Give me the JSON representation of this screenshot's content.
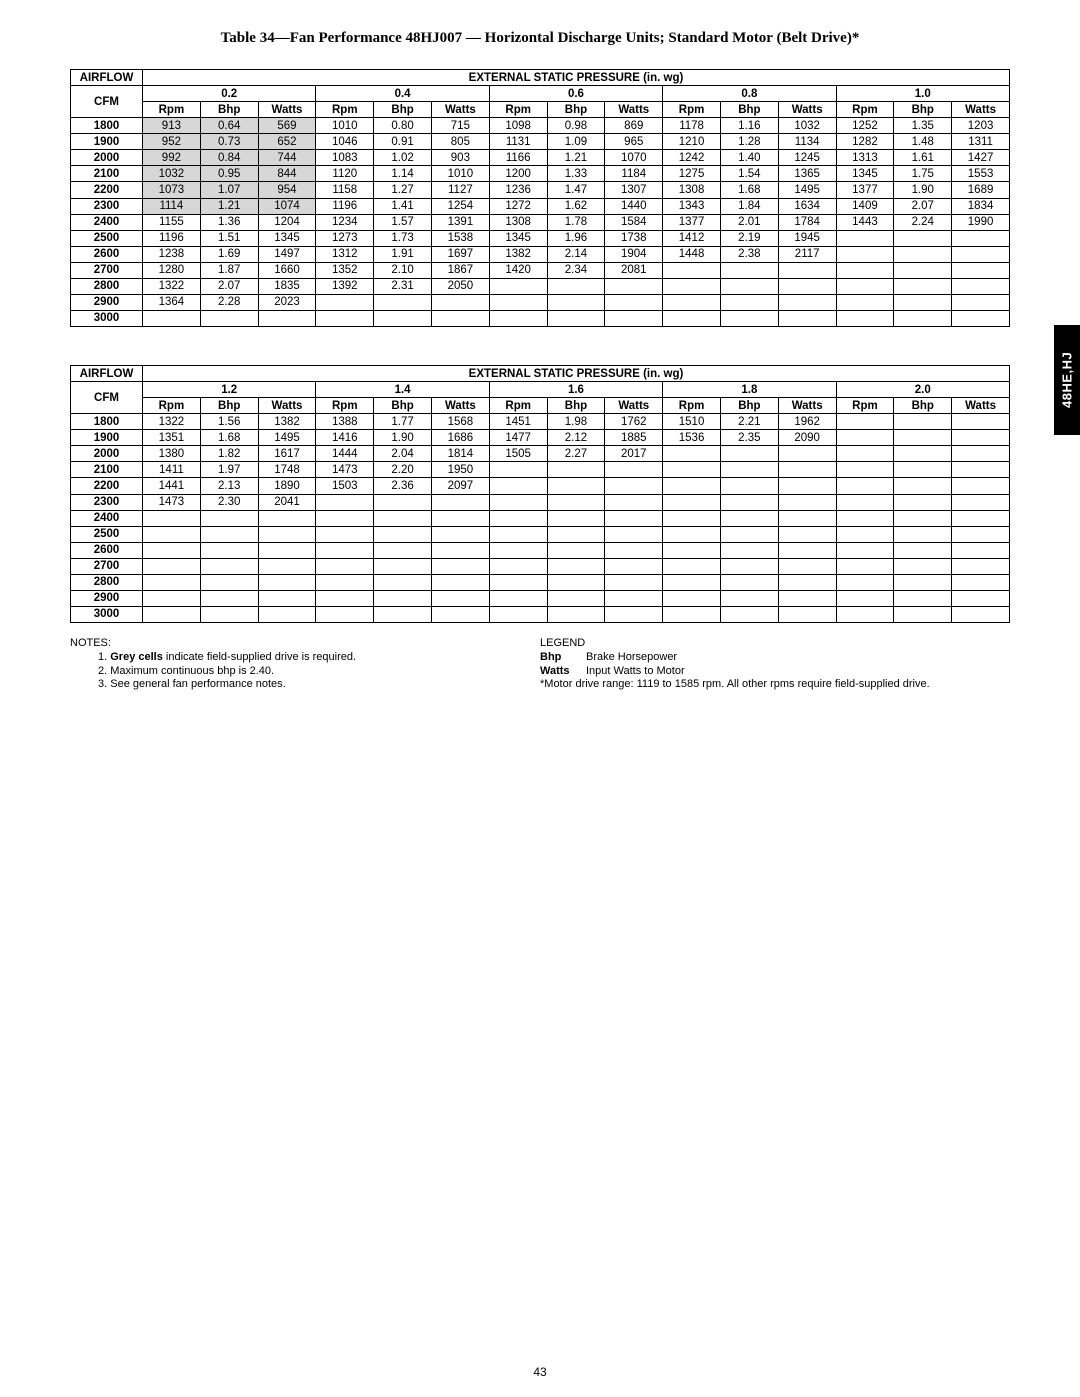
{
  "colors": {
    "grey_cell": "#d7d7d7",
    "tab_bg": "#000000",
    "tab_fg": "#ffffff",
    "border": "#000000",
    "page_bg": "#ffffff"
  },
  "side_tab": "48HE,HJ",
  "title": "Table 34—Fan Performance 48HJ007 — Horizontal Discharge Units; Standard Motor (Belt Drive)*",
  "airflow_label": "AIRFLOW",
  "cfm_label": "CFM",
  "esp_label": "EXTERNAL STATIC PRESSURE (in. wg)",
  "sub_headers": [
    "Rpm",
    "Bhp",
    "Watts"
  ],
  "table1": {
    "pressures": [
      "0.2",
      "0.4",
      "0.6",
      "0.8",
      "1.0"
    ],
    "cfms": [
      "1800",
      "1900",
      "2000",
      "2100",
      "2200",
      "2300",
      "2400",
      "2500",
      "2600",
      "2700",
      "2800",
      "2900",
      "3000"
    ],
    "grey_flags": [
      [
        true,
        false,
        false,
        false,
        false
      ],
      [
        true,
        false,
        false,
        false,
        false
      ],
      [
        true,
        false,
        false,
        false,
        false
      ],
      [
        true,
        false,
        false,
        false,
        false
      ],
      [
        true,
        false,
        false,
        false,
        false
      ],
      [
        true,
        false,
        false,
        false,
        false
      ],
      [
        false,
        false,
        false,
        false,
        false
      ],
      [
        false,
        false,
        false,
        false,
        false
      ],
      [
        false,
        false,
        false,
        false,
        false
      ],
      [
        false,
        false,
        false,
        false,
        false
      ],
      [
        false,
        false,
        false,
        false,
        false
      ],
      [
        false,
        false,
        false,
        false,
        false
      ],
      [
        false,
        false,
        false,
        false,
        false
      ]
    ],
    "rows": [
      [
        [
          "913",
          "0.64",
          "569"
        ],
        [
          "1010",
          "0.80",
          "715"
        ],
        [
          "1098",
          "0.98",
          "869"
        ],
        [
          "1178",
          "1.16",
          "1032"
        ],
        [
          "1252",
          "1.35",
          "1203"
        ]
      ],
      [
        [
          "952",
          "0.73",
          "652"
        ],
        [
          "1046",
          "0.91",
          "805"
        ],
        [
          "1131",
          "1.09",
          "965"
        ],
        [
          "1210",
          "1.28",
          "1134"
        ],
        [
          "1282",
          "1.48",
          "1311"
        ]
      ],
      [
        [
          "992",
          "0.84",
          "744"
        ],
        [
          "1083",
          "1.02",
          "903"
        ],
        [
          "1166",
          "1.21",
          "1070"
        ],
        [
          "1242",
          "1.40",
          "1245"
        ],
        [
          "1313",
          "1.61",
          "1427"
        ]
      ],
      [
        [
          "1032",
          "0.95",
          "844"
        ],
        [
          "1120",
          "1.14",
          "1010"
        ],
        [
          "1200",
          "1.33",
          "1184"
        ],
        [
          "1275",
          "1.54",
          "1365"
        ],
        [
          "1345",
          "1.75",
          "1553"
        ]
      ],
      [
        [
          "1073",
          "1.07",
          "954"
        ],
        [
          "1158",
          "1.27",
          "1127"
        ],
        [
          "1236",
          "1.47",
          "1307"
        ],
        [
          "1308",
          "1.68",
          "1495"
        ],
        [
          "1377",
          "1.90",
          "1689"
        ]
      ],
      [
        [
          "1114",
          "1.21",
          "1074"
        ],
        [
          "1196",
          "1.41",
          "1254"
        ],
        [
          "1272",
          "1.62",
          "1440"
        ],
        [
          "1343",
          "1.84",
          "1634"
        ],
        [
          "1409",
          "2.07",
          "1834"
        ]
      ],
      [
        [
          "1155",
          "1.36",
          "1204"
        ],
        [
          "1234",
          "1.57",
          "1391"
        ],
        [
          "1308",
          "1.78",
          "1584"
        ],
        [
          "1377",
          "2.01",
          "1784"
        ],
        [
          "1443",
          "2.24",
          "1990"
        ]
      ],
      [
        [
          "1196",
          "1.51",
          "1345"
        ],
        [
          "1273",
          "1.73",
          "1538"
        ],
        [
          "1345",
          "1.96",
          "1738"
        ],
        [
          "1412",
          "2.19",
          "1945"
        ],
        [
          "",
          "",
          ""
        ]
      ],
      [
        [
          "1238",
          "1.69",
          "1497"
        ],
        [
          "1312",
          "1.91",
          "1697"
        ],
        [
          "1382",
          "2.14",
          "1904"
        ],
        [
          "1448",
          "2.38",
          "2117"
        ],
        [
          "",
          "",
          ""
        ]
      ],
      [
        [
          "1280",
          "1.87",
          "1660"
        ],
        [
          "1352",
          "2.10",
          "1867"
        ],
        [
          "1420",
          "2.34",
          "2081"
        ],
        [
          "",
          "",
          ""
        ],
        [
          "",
          "",
          ""
        ]
      ],
      [
        [
          "1322",
          "2.07",
          "1835"
        ],
        [
          "1392",
          "2.31",
          "2050"
        ],
        [
          "",
          "",
          ""
        ],
        [
          "",
          "",
          ""
        ],
        [
          "",
          "",
          ""
        ]
      ],
      [
        [
          "1364",
          "2.28",
          "2023"
        ],
        [
          "",
          "",
          ""
        ],
        [
          "",
          "",
          ""
        ],
        [
          "",
          "",
          ""
        ],
        [
          "",
          "",
          ""
        ]
      ],
      [
        [
          "",
          "",
          ""
        ],
        [
          "",
          "",
          ""
        ],
        [
          "",
          "",
          ""
        ],
        [
          "",
          "",
          ""
        ],
        [
          "",
          "",
          ""
        ]
      ]
    ]
  },
  "table2": {
    "pressures": [
      "1.2",
      "1.4",
      "1.6",
      "1.8",
      "2.0"
    ],
    "cfms": [
      "1800",
      "1900",
      "2000",
      "2100",
      "2200",
      "2300",
      "2400",
      "2500",
      "2600",
      "2700",
      "2800",
      "2900",
      "3000"
    ],
    "grey_flags": [
      [
        false,
        false,
        false,
        false,
        false
      ],
      [
        false,
        false,
        false,
        false,
        false
      ],
      [
        false,
        false,
        false,
        false,
        false
      ],
      [
        false,
        false,
        false,
        false,
        false
      ],
      [
        false,
        false,
        false,
        false,
        false
      ],
      [
        false,
        false,
        false,
        false,
        false
      ],
      [
        false,
        false,
        false,
        false,
        false
      ],
      [
        false,
        false,
        false,
        false,
        false
      ],
      [
        false,
        false,
        false,
        false,
        false
      ],
      [
        false,
        false,
        false,
        false,
        false
      ],
      [
        false,
        false,
        false,
        false,
        false
      ],
      [
        false,
        false,
        false,
        false,
        false
      ],
      [
        false,
        false,
        false,
        false,
        false
      ]
    ],
    "rows": [
      [
        [
          "1322",
          "1.56",
          "1382"
        ],
        [
          "1388",
          "1.77",
          "1568"
        ],
        [
          "1451",
          "1.98",
          "1762"
        ],
        [
          "1510",
          "2.21",
          "1962"
        ],
        [
          "",
          "",
          ""
        ]
      ],
      [
        [
          "1351",
          "1.68",
          "1495"
        ],
        [
          "1416",
          "1.90",
          "1686"
        ],
        [
          "1477",
          "2.12",
          "1885"
        ],
        [
          "1536",
          "2.35",
          "2090"
        ],
        [
          "",
          "",
          ""
        ]
      ],
      [
        [
          "1380",
          "1.82",
          "1617"
        ],
        [
          "1444",
          "2.04",
          "1814"
        ],
        [
          "1505",
          "2.27",
          "2017"
        ],
        [
          "",
          "",
          ""
        ],
        [
          "",
          "",
          ""
        ]
      ],
      [
        [
          "1411",
          "1.97",
          "1748"
        ],
        [
          "1473",
          "2.20",
          "1950"
        ],
        [
          "",
          "",
          ""
        ],
        [
          "",
          "",
          ""
        ],
        [
          "",
          "",
          ""
        ]
      ],
      [
        [
          "1441",
          "2.13",
          "1890"
        ],
        [
          "1503",
          "2.36",
          "2097"
        ],
        [
          "",
          "",
          ""
        ],
        [
          "",
          "",
          ""
        ],
        [
          "",
          "",
          ""
        ]
      ],
      [
        [
          "1473",
          "2.30",
          "2041"
        ],
        [
          "",
          "",
          ""
        ],
        [
          "",
          "",
          ""
        ],
        [
          "",
          "",
          ""
        ],
        [
          "",
          "",
          ""
        ]
      ],
      [
        [
          "",
          "",
          ""
        ],
        [
          "",
          "",
          ""
        ],
        [
          "",
          "",
          ""
        ],
        [
          "",
          "",
          ""
        ],
        [
          "",
          "",
          ""
        ]
      ],
      [
        [
          "",
          "",
          ""
        ],
        [
          "",
          "",
          ""
        ],
        [
          "",
          "",
          ""
        ],
        [
          "",
          "",
          ""
        ],
        [
          "",
          "",
          ""
        ]
      ],
      [
        [
          "",
          "",
          ""
        ],
        [
          "",
          "",
          ""
        ],
        [
          "",
          "",
          ""
        ],
        [
          "",
          "",
          ""
        ],
        [
          "",
          "",
          ""
        ]
      ],
      [
        [
          "",
          "",
          ""
        ],
        [
          "",
          "",
          ""
        ],
        [
          "",
          "",
          ""
        ],
        [
          "",
          "",
          ""
        ],
        [
          "",
          "",
          ""
        ]
      ],
      [
        [
          "",
          "",
          ""
        ],
        [
          "",
          "",
          ""
        ],
        [
          "",
          "",
          ""
        ],
        [
          "",
          "",
          ""
        ],
        [
          "",
          "",
          ""
        ]
      ],
      [
        [
          "",
          "",
          ""
        ],
        [
          "",
          "",
          ""
        ],
        [
          "",
          "",
          ""
        ],
        [
          "",
          "",
          ""
        ],
        [
          "",
          "",
          ""
        ]
      ],
      [
        [
          "",
          "",
          ""
        ],
        [
          "",
          "",
          ""
        ],
        [
          "",
          "",
          ""
        ],
        [
          "",
          "",
          ""
        ],
        [
          "",
          "",
          ""
        ]
      ]
    ]
  },
  "notes_label": "NOTES:",
  "notes": [
    {
      "prefix": "1. ",
      "bold": "Grey cells",
      "rest": " indicate field-supplied drive is required."
    },
    {
      "prefix": "2. ",
      "bold": "",
      "rest": "Maximum continuous bhp is 2.40."
    },
    {
      "prefix": "3. ",
      "bold": "",
      "rest": "See general fan performance notes."
    }
  ],
  "legend_label": "LEGEND",
  "legend": [
    {
      "key": "Bhp",
      "val": "Brake Horsepower"
    },
    {
      "key": "Watts",
      "val": "Input Watts to Motor"
    }
  ],
  "legend_footnote": "*Motor drive range: 1119 to 1585 rpm. All other rpms require field-supplied drive.",
  "page_number": "43"
}
